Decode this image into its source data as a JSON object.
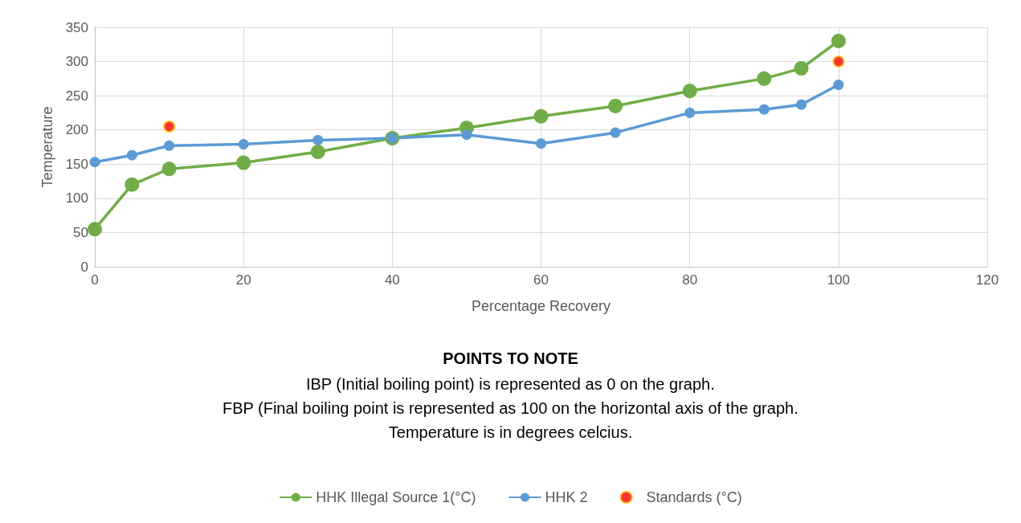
{
  "chart_data": {
    "type": "line",
    "xlabel": "Percentage Recovery",
    "ylabel": "Temperature",
    "xlim": [
      0,
      120
    ],
    "xticks": [
      0,
      20,
      40,
      60,
      80,
      100,
      120
    ],
    "ylim": [
      0,
      350
    ],
    "yticks": [
      0,
      50,
      100,
      150,
      200,
      250,
      300,
      350
    ],
    "grid": true,
    "legend": "bottom",
    "marker": "circle",
    "line_style": "solid",
    "series": [
      {
        "name": "HHK Illegal Source 1(°C)",
        "color": "#70ad47",
        "x": [
          0,
          5,
          10,
          20,
          30,
          40,
          50,
          60,
          70,
          80,
          90,
          95,
          100
        ],
        "values": [
          55,
          120,
          143,
          152,
          168,
          188,
          203,
          220,
          235,
          257,
          275,
          290,
          330
        ]
      },
      {
        "name": "HHK 2",
        "color": "#5b9bd5",
        "x": [
          0,
          5,
          10,
          20,
          30,
          40,
          50,
          60,
          70,
          80,
          90,
          95,
          100
        ],
        "values": [
          153,
          163,
          177,
          179,
          185,
          188,
          193,
          180,
          196,
          225,
          230,
          237,
          266
        ]
      },
      {
        "name": "Standards (°C)",
        "type": "scatter",
        "color": "#ff0000",
        "x": [
          10,
          100
        ],
        "values": [
          205,
          300
        ]
      }
    ],
    "annotations": [
      "POINTS TO NOTE",
      "IBP (Initial boiling point) is represented as 0 on the graph.",
      "FBP (Final boiling point is represented as 100 on the horizontal axis of the graph.",
      "Temperature is in degrees celcius."
    ]
  }
}
